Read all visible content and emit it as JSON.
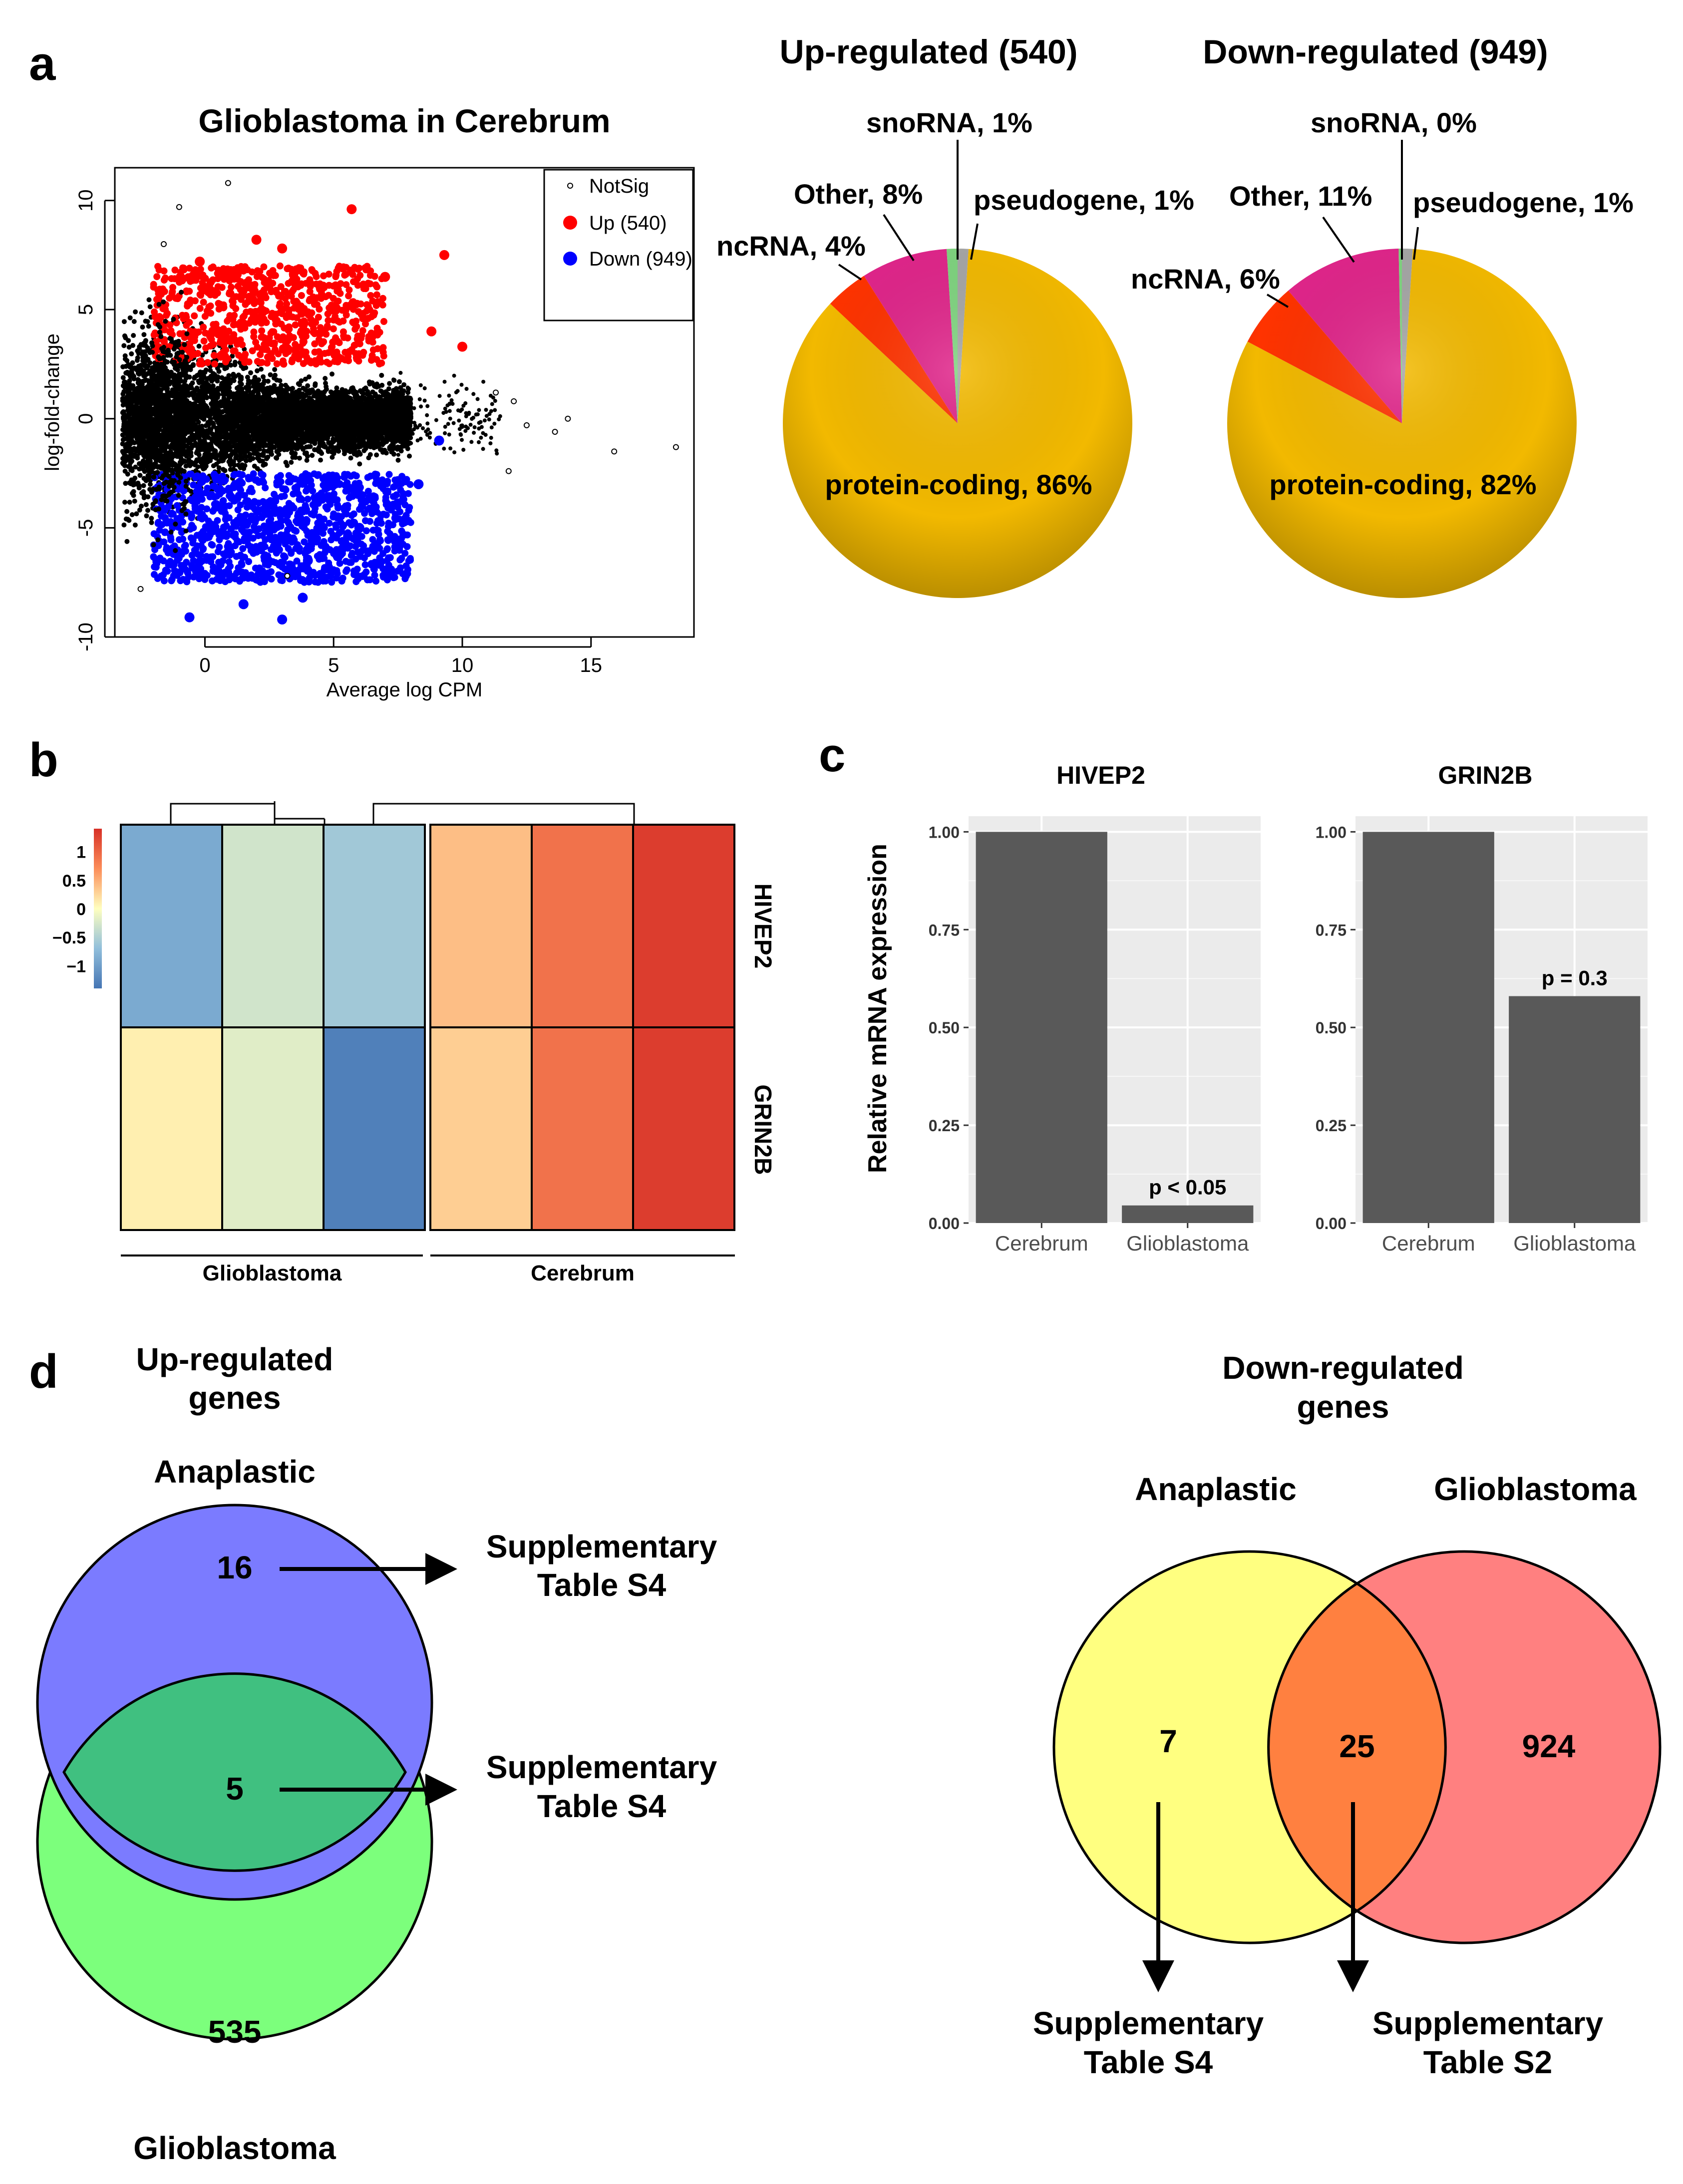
{
  "panel_labels": {
    "a": "a",
    "b": "b",
    "c": "c",
    "d": "d"
  },
  "chart_data": [
    {
      "type": "scatter",
      "title": "Glioblastoma in Cerebrum",
      "xlabel": "Average log CPM",
      "ylabel": "log-fold-change",
      "xlim": [
        -3.5,
        19
      ],
      "ylim": [
        -10,
        11.5
      ],
      "xticks": [
        0,
        5,
        10,
        15
      ],
      "yticks": [
        -10,
        -5,
        0,
        5,
        10
      ],
      "legend_position": "top-right",
      "series": [
        {
          "name": "NotSig",
          "color": "#000000",
          "points": [
            [
              0.9,
              10.8
            ],
            [
              -1.0,
              9.7
            ],
            [
              -1.6,
              8.0
            ],
            [
              12.0,
              0.8
            ],
            [
              13.6,
              -0.6
            ],
            [
              14.1,
              0.0
            ],
            [
              15.9,
              -1.5
            ],
            [
              18.3,
              -1.3
            ],
            [
              11.8,
              -2.4
            ],
            [
              12.5,
              -0.3
            ],
            [
              11.3,
              1.2
            ],
            [
              -2.5,
              -7.8
            ],
            [
              3.2,
              -7.2
            ]
          ]
        },
        {
          "name": "Up (540)",
          "color": "#ff0000",
          "points": [
            [
              5.7,
              9.6
            ],
            [
              9.3,
              7.5
            ],
            [
              7.0,
              6.5
            ],
            [
              3.0,
              7.8
            ],
            [
              -0.2,
              7.2
            ],
            [
              8.8,
              4.0
            ],
            [
              10.0,
              3.3
            ],
            [
              2.0,
              8.2
            ],
            [
              4.5,
              6.0
            ],
            [
              1.0,
              6.5
            ]
          ]
        },
        {
          "name": "Down (949)",
          "color": "#0000ff",
          "points": [
            [
              3.0,
              -9.2
            ],
            [
              -0.6,
              -9.1
            ],
            [
              1.5,
              -8.5
            ],
            [
              3.8,
              -8.2
            ],
            [
              9.1,
              -1.0
            ],
            [
              8.3,
              -3.0
            ],
            [
              4.0,
              -6.5
            ],
            [
              0.5,
              -7.0
            ],
            [
              2.0,
              -6.0
            ],
            [
              6.0,
              -5.0
            ]
          ]
        }
      ]
    },
    {
      "type": "pie",
      "title": "Up-regulated (540)",
      "slices": [
        {
          "label": "protein-coding, 86%",
          "value": 86,
          "color": "#f2b900"
        },
        {
          "label": "ncRNA, 4%",
          "value": 4,
          "color": "#ff3300"
        },
        {
          "label": "Other, 8%",
          "value": 8,
          "color": "#e0258a"
        },
        {
          "label": "snoRNA, 1%",
          "value": 1,
          "color": "#7fd47f"
        },
        {
          "label": "pseudogene, 1%",
          "value": 1,
          "color": "#a6a6a6"
        }
      ]
    },
    {
      "type": "pie",
      "title": "Down-regulated (949)",
      "slices": [
        {
          "label": "protein-coding, 82%",
          "value": 82,
          "color": "#f2b900"
        },
        {
          "label": "ncRNA, 6%",
          "value": 6,
          "color": "#ff3300"
        },
        {
          "label": "Other, 11%",
          "value": 11,
          "color": "#e0258a"
        },
        {
          "label": "snoRNA, 0%",
          "value": 0.3,
          "color": "#7fd47f"
        },
        {
          "label": "pseudogene, 1%",
          "value": 1,
          "color": "#a6a6a6"
        }
      ]
    },
    {
      "type": "heatmap",
      "rows": [
        "HIVEP2",
        "GRIN2B"
      ],
      "column_groups": [
        "Glioblastoma",
        "Cerebrum"
      ],
      "values": [
        [
          -0.9,
          -0.3,
          -0.6,
          0.4,
          0.9,
          1.3
        ],
        [
          0.1,
          -0.2,
          -1.3,
          0.3,
          0.9,
          1.3
        ]
      ],
      "colorbar_ticks": [
        "1",
        "0.5",
        "0",
        "−0.5",
        "−1"
      ],
      "colorbar_range": [
        -1.4,
        1.4
      ]
    },
    {
      "type": "bar",
      "title": "HIVEP2",
      "ylabel": "Relative mRNA expression",
      "categories": [
        "Cerebrum",
        "Glioblastoma"
      ],
      "values": [
        1.0,
        0.045
      ],
      "ylim": [
        0,
        1.04
      ],
      "yticks": [
        "0.00",
        "0.25",
        "0.50",
        "0.75",
        "1.00"
      ],
      "annotation": "p < 0.05"
    },
    {
      "type": "bar",
      "title": "GRIN2B",
      "categories": [
        "Cerebrum",
        "Glioblastoma"
      ],
      "values": [
        1.0,
        0.58
      ],
      "ylim": [
        0,
        1.04
      ],
      "yticks": [
        "0.00",
        "0.25",
        "0.50",
        "0.75",
        "1.00"
      ],
      "annotation": "p = 0.3"
    }
  ],
  "venn_up": {
    "title_line1": "Up-regulated",
    "title_line2": "genes",
    "set_a": "Anaplastic",
    "set_b": "Glioblastoma",
    "only_a": "16",
    "both": "5",
    "only_b": "535",
    "arrow1_line1": "Supplementary",
    "arrow1_line2": "Table S4",
    "arrow2_line1": "Supplementary",
    "arrow2_line2": "Table S4",
    "color_a": "#7b7bff",
    "color_b": "#7cff7c",
    "color_both": "#40c080"
  },
  "venn_down": {
    "title_line1": "Down-regulated",
    "title_line2": "genes",
    "set_a": "Anaplastic",
    "set_b": "Glioblastoma",
    "only_a": "7",
    "both": "25",
    "only_b": "924",
    "arrow1_line1": "Supplementary",
    "arrow1_line2": "Table S4",
    "arrow2_line1": "Supplementary",
    "arrow2_line2": "Table S2",
    "color_a": "#ffff80",
    "color_b": "#ff8080",
    "color_both": "#ff8040"
  }
}
